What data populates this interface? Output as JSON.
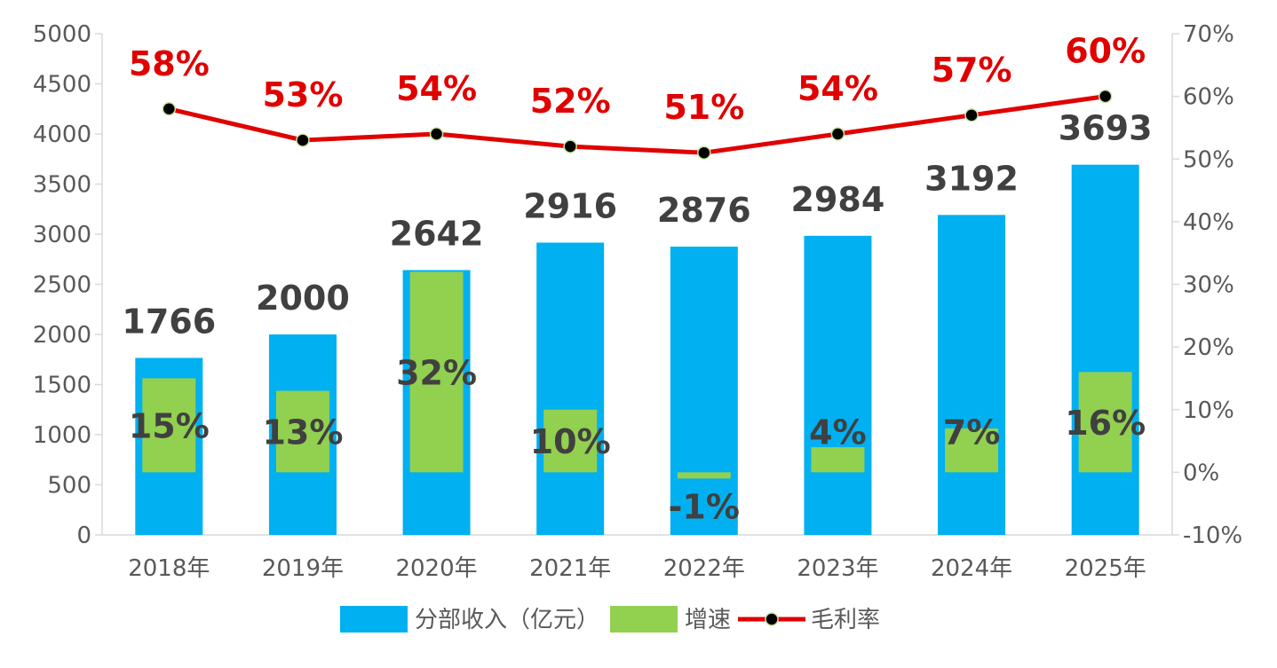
{
  "chart_data": {
    "type": "bar",
    "categories": [
      "2018年",
      "2019年",
      "2020年",
      "2021年",
      "2022年",
      "2023年",
      "2024年",
      "2025年"
    ],
    "series": [
      {
        "name": "分部收入（亿元）",
        "kind": "bar",
        "axis": "left",
        "color": "#00b0f0",
        "values": [
          1766,
          2000,
          2642,
          2916,
          2876,
          2984,
          3192,
          3693
        ]
      },
      {
        "name": "增速",
        "kind": "bar",
        "axis": "right",
        "color": "#92d050",
        "values": [
          15,
          13,
          32,
          10,
          -1,
          4,
          7,
          16
        ],
        "labels": [
          "15%",
          "13%",
          "32%",
          "10%",
          "-1%",
          "4%",
          "7%",
          "16%"
        ]
      },
      {
        "name": "毛利率",
        "kind": "line",
        "axis": "right",
        "color": "#e00000",
        "marker_color": "#000000",
        "values": [
          58,
          53,
          54,
          52,
          51,
          54,
          57,
          60
        ],
        "labels": [
          "58%",
          "53%",
          "54%",
          "52%",
          "51%",
          "54%",
          "57%",
          "60%"
        ]
      }
    ],
    "y_left": {
      "min": 0,
      "max": 5000,
      "step": 500,
      "ticks": [
        "0",
        "500",
        "1000",
        "1500",
        "2000",
        "2500",
        "3000",
        "3500",
        "4000",
        "4500",
        "5000"
      ]
    },
    "y_right": {
      "min": -10,
      "max": 70,
      "step": 10,
      "ticks": [
        "-10%",
        "0%",
        "10%",
        "20%",
        "30%",
        "40%",
        "50%",
        "60%",
        "70%"
      ]
    },
    "legend_position": "bottom",
    "grid": false,
    "negative_label_color": "#e00000"
  }
}
